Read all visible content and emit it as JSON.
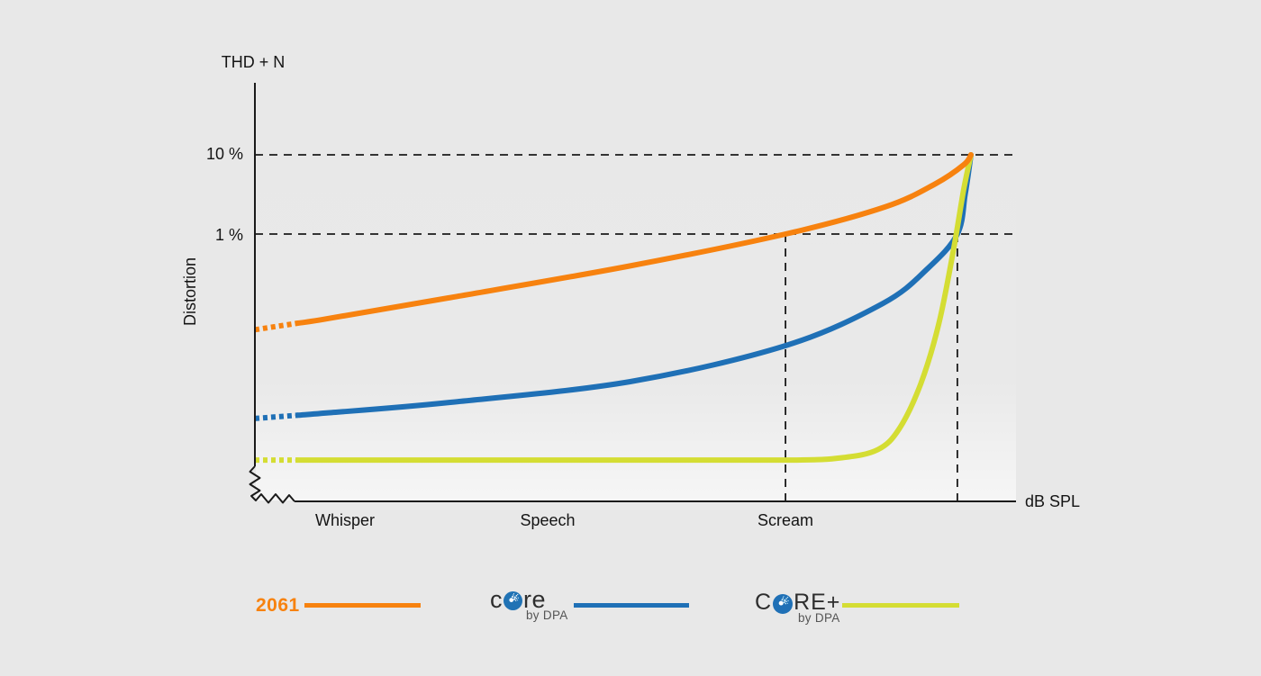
{
  "title": "THD + N",
  "y_axis": {
    "label": "Distortion",
    "tick_10": "10 %",
    "tick_1": "1 %"
  },
  "x_axis": {
    "label": "dB SPL",
    "cat_whisper": "Whisper",
    "cat_speech": "Speech",
    "cat_scream": "Scream"
  },
  "legend": {
    "item_2061": {
      "label": "2061",
      "color": "#F7820F"
    },
    "item_core": {
      "word_start": "c",
      "word_end": "re",
      "sub": "by DPA",
      "color": "#1F70B6"
    },
    "item_core_plus": {
      "word_start": "C",
      "word_end": "RE+",
      "sub": "by DPA",
      "color": "#D4DD33"
    }
  },
  "chart_data": {
    "type": "line",
    "title": "THD + N",
    "ylabel": "Distortion",
    "xlabel": "dB SPL",
    "y_scale": "log",
    "y_tick_percent": [
      10,
      1
    ],
    "x_categories": [
      "Whisper",
      "Speech",
      "Scream"
    ],
    "x_range_normalized": [
      0,
      1
    ],
    "grid": "dashed-reference-lines-only",
    "legend_position": "bottom",
    "guides": {
      "horizontal_percent": [
        10,
        1
      ],
      "vertical_at_x": [
        0.741,
        0.981
      ],
      "note": "vertical dashed lines mark where 2061 and CORE reach 1% THD+N"
    },
    "series": [
      {
        "name": "CORE by DPA",
        "color": "#1F70B6",
        "dashed_lead_in": true,
        "points": [
          [
            0,
            0.0047
          ],
          [
            0.1,
            0.0055
          ],
          [
            0.273,
            0.0075
          ],
          [
            0.524,
            0.0137
          ],
          [
            0.741,
            0.039
          ],
          [
            0.877,
            0.133
          ],
          [
            0.94,
            0.37
          ],
          [
            0.981,
            1.0
          ],
          [
            0.992,
            3.2
          ],
          [
            1,
            10
          ]
        ]
      },
      {
        "name": "CORE+ by DPA",
        "color": "#D4DD33",
        "dashed_lead_in": true,
        "points": [
          [
            0,
            0.0014
          ],
          [
            0.3,
            0.0014
          ],
          [
            0.55,
            0.0014
          ],
          [
            0.75,
            0.0014
          ],
          [
            0.82,
            0.0015
          ],
          [
            0.87,
            0.0019
          ],
          [
            0.9,
            0.0035
          ],
          [
            0.93,
            0.013
          ],
          [
            0.955,
            0.073
          ],
          [
            0.975,
            0.59
          ],
          [
            0.99,
            3.7
          ],
          [
            1,
            10
          ]
        ]
      },
      {
        "name": "2061",
        "color": "#F7820F",
        "dashed_lead_in": true,
        "points": [
          [
            0,
            0.062
          ],
          [
            0.1,
            0.085
          ],
          [
            0.27,
            0.156
          ],
          [
            0.52,
            0.39
          ],
          [
            0.741,
            1.0
          ],
          [
            0.88,
            2.2
          ],
          [
            0.95,
            4.3
          ],
          [
            0.99,
            7.5
          ],
          [
            1,
            10
          ]
        ]
      }
    ]
  }
}
